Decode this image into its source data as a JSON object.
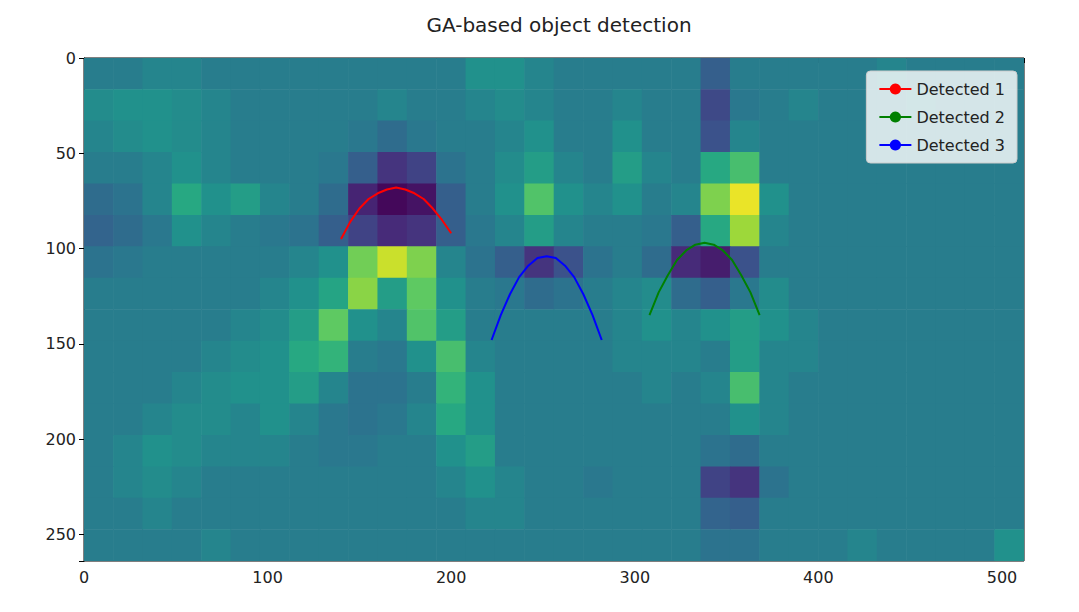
{
  "chart_data": {
    "type": "line",
    "title": "GA-based object detection",
    "xlim": [
      0,
      512
    ],
    "ylim": [
      0,
      264
    ],
    "xticks": [
      0,
      100,
      200,
      300,
      400,
      500
    ],
    "yticks": [
      0,
      50,
      100,
      150,
      200,
      250
    ],
    "y_inverted": true,
    "grid": false,
    "legend": "upper right",
    "series": [
      {
        "name": "Detected 1",
        "color": "#ff0000",
        "x": [
          140,
          145,
          150,
          155,
          160,
          165,
          170,
          175,
          180,
          185,
          190,
          195,
          200
        ],
        "values": [
          95,
          86,
          79,
          74,
          71,
          69,
          68,
          69,
          71,
          74,
          79,
          85,
          92
        ]
      },
      {
        "name": "Detected 2",
        "color": "#008000",
        "x": [
          308,
          313,
          318,
          323,
          328,
          333,
          338,
          343,
          348,
          353,
          358,
          363,
          368
        ],
        "values": [
          135,
          123,
          114,
          106,
          101,
          98,
          97,
          98,
          101,
          106,
          114,
          123,
          135
        ]
      },
      {
        "name": "Detected 3",
        "color": "#0000ff",
        "x": [
          222,
          227,
          232,
          237,
          242,
          247,
          252,
          257,
          262,
          267,
          272,
          277,
          282
        ],
        "values": [
          148,
          135,
          124,
          115,
          109,
          105,
          104,
          105,
          109,
          115,
          124,
          135,
          148
        ]
      }
    ],
    "heatmap": {
      "zlim": [
        0,
        1
      ],
      "x_edges": [
        0,
        16,
        32,
        48,
        64,
        80,
        96,
        112,
        128,
        144,
        160,
        176,
        192,
        208,
        224,
        240,
        256,
        272,
        288,
        304,
        320,
        336,
        352,
        368,
        384,
        400,
        416,
        432,
        448,
        464,
        480,
        496,
        512
      ],
      "y_edges": [
        0,
        16.5,
        33,
        49.5,
        66,
        82.5,
        99,
        115.5,
        132,
        148.5,
        165,
        181.5,
        198,
        214.5,
        231,
        247.5,
        264
      ],
      "cells": [
        [
          0.42,
          0.42,
          0.45,
          0.45,
          0.42,
          0.42,
          0.42,
          0.42,
          0.42,
          0.42,
          0.42,
          0.42,
          0.42,
          0.5,
          0.5,
          0.45,
          0.42,
          0.42,
          0.42,
          0.42,
          0.42,
          0.3,
          0.42,
          0.42,
          0.42,
          0.42,
          0.42,
          0.45,
          0.42,
          0.42,
          0.42,
          0.42
        ],
        [
          0.48,
          0.5,
          0.5,
          0.48,
          0.45,
          0.42,
          0.42,
          0.42,
          0.42,
          0.42,
          0.45,
          0.42,
          0.42,
          0.45,
          0.48,
          0.45,
          0.42,
          0.42,
          0.45,
          0.42,
          0.42,
          0.22,
          0.4,
          0.42,
          0.45,
          0.42,
          0.42,
          0.42,
          0.45,
          0.42,
          0.42,
          0.42
        ],
        [
          0.45,
          0.48,
          0.5,
          0.48,
          0.45,
          0.42,
          0.42,
          0.42,
          0.42,
          0.4,
          0.35,
          0.4,
          0.42,
          0.42,
          0.45,
          0.5,
          0.42,
          0.42,
          0.5,
          0.42,
          0.42,
          0.25,
          0.45,
          0.42,
          0.42,
          0.42,
          0.42,
          0.42,
          0.42,
          0.42,
          0.42,
          0.42
        ],
        [
          0.42,
          0.42,
          0.45,
          0.5,
          0.45,
          0.42,
          0.42,
          0.42,
          0.4,
          0.3,
          0.15,
          0.2,
          0.38,
          0.42,
          0.48,
          0.55,
          0.45,
          0.42,
          0.55,
          0.45,
          0.42,
          0.6,
          0.7,
          0.42,
          0.42,
          0.42,
          0.42,
          0.42,
          0.42,
          0.42,
          0.42,
          0.42
        ],
        [
          0.35,
          0.38,
          0.45,
          0.6,
          0.5,
          0.55,
          0.45,
          0.42,
          0.35,
          0.1,
          0.02,
          0.05,
          0.3,
          0.42,
          0.5,
          0.72,
          0.5,
          0.45,
          0.5,
          0.42,
          0.45,
          0.8,
          0.97,
          0.5,
          0.42,
          0.42,
          0.42,
          0.42,
          0.42,
          0.42,
          0.42,
          0.42
        ],
        [
          0.32,
          0.35,
          0.4,
          0.5,
          0.45,
          0.42,
          0.4,
          0.38,
          0.3,
          0.2,
          0.12,
          0.15,
          0.3,
          0.4,
          0.45,
          0.55,
          0.45,
          0.42,
          0.42,
          0.4,
          0.3,
          0.6,
          0.85,
          0.45,
          0.42,
          0.42,
          0.42,
          0.42,
          0.42,
          0.42,
          0.42,
          0.42
        ],
        [
          0.38,
          0.4,
          0.42,
          0.42,
          0.42,
          0.42,
          0.42,
          0.45,
          0.5,
          0.78,
          0.92,
          0.8,
          0.45,
          0.38,
          0.3,
          0.15,
          0.25,
          0.38,
          0.42,
          0.35,
          0.12,
          0.08,
          0.25,
          0.42,
          0.42,
          0.42,
          0.42,
          0.42,
          0.42,
          0.42,
          0.42,
          0.42
        ],
        [
          0.42,
          0.42,
          0.42,
          0.42,
          0.42,
          0.42,
          0.45,
          0.5,
          0.58,
          0.82,
          0.55,
          0.75,
          0.5,
          0.42,
          0.4,
          0.35,
          0.38,
          0.42,
          0.45,
          0.48,
          0.35,
          0.3,
          0.4,
          0.48,
          0.42,
          0.42,
          0.42,
          0.42,
          0.42,
          0.42,
          0.42,
          0.42
        ],
        [
          0.42,
          0.42,
          0.42,
          0.42,
          0.42,
          0.45,
          0.48,
          0.55,
          0.75,
          0.5,
          0.45,
          0.72,
          0.55,
          0.42,
          0.42,
          0.42,
          0.42,
          0.42,
          0.45,
          0.5,
          0.45,
          0.5,
          0.55,
          0.5,
          0.45,
          0.42,
          0.42,
          0.42,
          0.42,
          0.42,
          0.42,
          0.42
        ],
        [
          0.42,
          0.42,
          0.42,
          0.42,
          0.45,
          0.48,
          0.5,
          0.6,
          0.65,
          0.42,
          0.4,
          0.5,
          0.7,
          0.45,
          0.42,
          0.42,
          0.42,
          0.42,
          0.45,
          0.45,
          0.45,
          0.42,
          0.55,
          0.45,
          0.45,
          0.42,
          0.42,
          0.42,
          0.42,
          0.42,
          0.42,
          0.42
        ],
        [
          0.42,
          0.42,
          0.42,
          0.45,
          0.48,
          0.5,
          0.5,
          0.55,
          0.45,
          0.38,
          0.38,
          0.42,
          0.65,
          0.5,
          0.42,
          0.42,
          0.42,
          0.42,
          0.42,
          0.45,
          0.42,
          0.45,
          0.7,
          0.45,
          0.42,
          0.42,
          0.42,
          0.42,
          0.42,
          0.42,
          0.42,
          0.42
        ],
        [
          0.42,
          0.42,
          0.45,
          0.48,
          0.48,
          0.45,
          0.5,
          0.45,
          0.4,
          0.38,
          0.4,
          0.45,
          0.6,
          0.5,
          0.42,
          0.42,
          0.42,
          0.42,
          0.42,
          0.42,
          0.42,
          0.42,
          0.5,
          0.45,
          0.42,
          0.42,
          0.42,
          0.42,
          0.42,
          0.42,
          0.42,
          0.42
        ],
        [
          0.42,
          0.45,
          0.5,
          0.48,
          0.45,
          0.45,
          0.45,
          0.42,
          0.4,
          0.4,
          0.42,
          0.42,
          0.5,
          0.55,
          0.42,
          0.42,
          0.42,
          0.42,
          0.42,
          0.42,
          0.42,
          0.38,
          0.35,
          0.42,
          0.42,
          0.42,
          0.42,
          0.42,
          0.42,
          0.42,
          0.42,
          0.42
        ],
        [
          0.42,
          0.45,
          0.48,
          0.45,
          0.42,
          0.42,
          0.42,
          0.42,
          0.42,
          0.42,
          0.42,
          0.42,
          0.45,
          0.5,
          0.45,
          0.42,
          0.42,
          0.4,
          0.42,
          0.42,
          0.42,
          0.2,
          0.15,
          0.38,
          0.42,
          0.42,
          0.42,
          0.42,
          0.42,
          0.42,
          0.42,
          0.42
        ],
        [
          0.42,
          0.42,
          0.45,
          0.42,
          0.42,
          0.42,
          0.42,
          0.42,
          0.42,
          0.42,
          0.42,
          0.42,
          0.42,
          0.45,
          0.45,
          0.42,
          0.42,
          0.42,
          0.42,
          0.42,
          0.42,
          0.32,
          0.3,
          0.42,
          0.42,
          0.42,
          0.42,
          0.42,
          0.42,
          0.42,
          0.42,
          0.42
        ],
        [
          0.42,
          0.42,
          0.42,
          0.42,
          0.45,
          0.42,
          0.42,
          0.42,
          0.42,
          0.42,
          0.42,
          0.42,
          0.42,
          0.42,
          0.42,
          0.42,
          0.42,
          0.42,
          0.42,
          0.42,
          0.42,
          0.38,
          0.38,
          0.42,
          0.42,
          0.42,
          0.45,
          0.42,
          0.42,
          0.42,
          0.42,
          0.5
        ]
      ]
    }
  }
}
